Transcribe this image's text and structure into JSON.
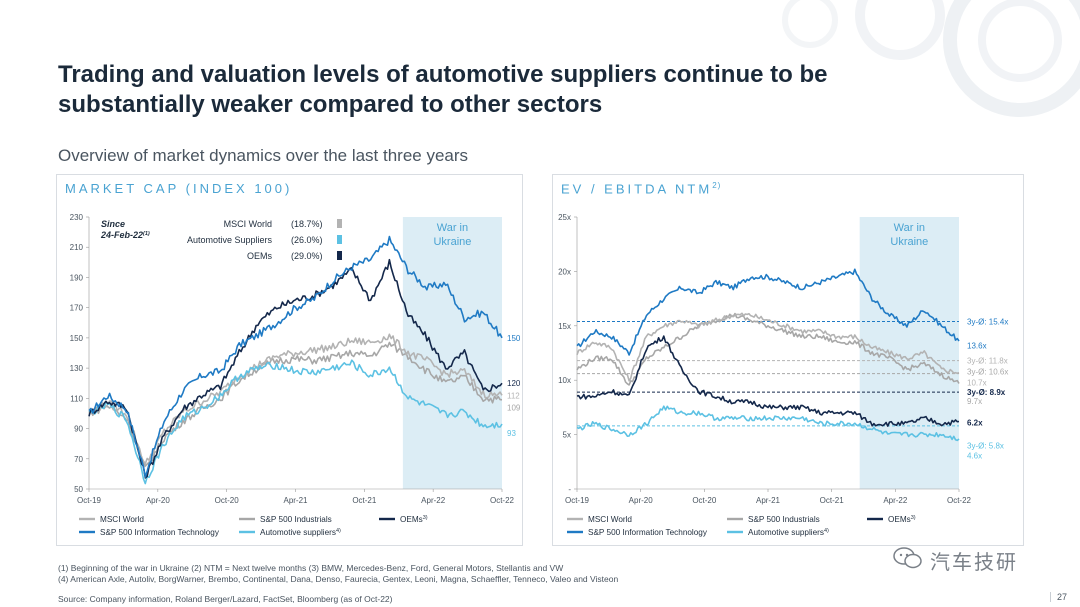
{
  "title": "Trading and valuation levels of automotive suppliers continue to be substantially weaker compared to other sectors",
  "subtitle": "Overview of market dynamics over the last three years",
  "colors": {
    "msci": "#b3b3b3",
    "sp500it": "#1f7ac4",
    "industrials": "#a7a7a7",
    "oems": "#14284b",
    "suppliers": "#5cc1e3",
    "war": "#dcedf5",
    "ref_dash": "#1f7ac4",
    "accent": "#4aa3d2"
  },
  "chart_data": [
    {
      "type": "line",
      "title": "MARKET CAP (INDEX 100)",
      "ylim": [
        50,
        230
      ],
      "yticks": [
        50,
        70,
        90,
        110,
        130,
        150,
        170,
        190,
        210,
        230
      ],
      "x_ticks": [
        "Oct-19",
        "Apr-20",
        "Oct-20",
        "Apr-21",
        "Oct-21",
        "Apr-22",
        "Oct-22"
      ],
      "war_label": [
        "War in",
        "Ukraine"
      ],
      "since_label": [
        "Since",
        "24-Feb-22"
      ],
      "since_sup": "(1)",
      "since_rows": [
        {
          "label": "MSCI World",
          "value": "(18.7%)",
          "color": "msci"
        },
        {
          "label": "Automotive Suppliers",
          "value": "(26.0%)",
          "color": "suppliers"
        },
        {
          "label": "OEMs",
          "value": "(29.0%)",
          "color": "oems"
        }
      ],
      "end_labels": [
        "150",
        "120",
        "112",
        "109",
        "93"
      ],
      "legend": [
        {
          "label": "MSCI World",
          "sup": "",
          "color": "msci"
        },
        {
          "label": "S&P 500 Industrials",
          "sup": "",
          "color": "industrials"
        },
        {
          "label": "OEMs",
          "sup": "3)",
          "color": "oems"
        },
        {
          "label": "S&P 500 Information Technology",
          "sup": "",
          "color": "sp500it"
        },
        {
          "label": "Automotive suppliers",
          "sup": "4)",
          "color": "suppliers"
        }
      ],
      "series": [
        {
          "name": "S&P 500 Information Technology",
          "color": "sp500it",
          "values": [
            100,
            112,
            103,
            60,
            95,
            115,
            125,
            128,
            145,
            152,
            160,
            170,
            176,
            188,
            197,
            202,
            215,
            195,
            183,
            186,
            163,
            167,
            150
          ]
        },
        {
          "name": "OEMs",
          "color": "oems",
          "values": [
            100,
            108,
            104,
            58,
            85,
            103,
            112,
            118,
            140,
            160,
            170,
            175,
            178,
            185,
            195,
            175,
            200,
            165,
            150,
            130,
            140,
            115,
            120
          ]
        },
        {
          "name": "MSCI World",
          "color": "msci",
          "values": [
            100,
            107,
            100,
            66,
            88,
            101,
            108,
            114,
            125,
            132,
            138,
            140,
            142,
            144,
            148,
            147,
            151,
            140,
            135,
            126,
            128,
            113,
            112
          ]
        },
        {
          "name": "S&P 500 Industrials",
          "color": "industrials",
          "values": [
            100,
            105,
            97,
            63,
            84,
            95,
            103,
            110,
            122,
            130,
            135,
            136,
            135,
            137,
            140,
            138,
            146,
            138,
            128,
            120,
            124,
            110,
            109
          ]
        },
        {
          "name": "Automotive suppliers",
          "color": "suppliers",
          "values": [
            100,
            106,
            96,
            55,
            80,
            97,
            103,
            112,
            125,
            130,
            132,
            128,
            127,
            130,
            133,
            125,
            130,
            110,
            105,
            99,
            101,
            92,
            93
          ]
        }
      ]
    },
    {
      "type": "line",
      "title": "EV / EBITDA NTM",
      "title_sup": "2)",
      "ylim": [
        0,
        25
      ],
      "ytick_labels": [
        "-",
        "5x",
        "10x",
        "15x",
        "20x",
        "25x"
      ],
      "x_ticks": [
        "Oct-19",
        "Apr-20",
        "Oct-20",
        "Apr-21",
        "Oct-21",
        "Apr-22",
        "Oct-22"
      ],
      "war_label": [
        "War in",
        "Ukraine"
      ],
      "reference_lines": [
        {
          "label": "3y-Ø: 15.4x",
          "value": 15.4,
          "color": "sp500it",
          "bold": false
        },
        {
          "label": "3y-Ø: 11.8x",
          "value": 11.8,
          "color": "msci",
          "bold": false
        },
        {
          "label": "3y-Ø: 10.6x",
          "value": 10.6,
          "color": "industrials",
          "bold": false
        },
        {
          "label": "3y-Ø: 8.9x",
          "value": 8.9,
          "color": "oems",
          "bold": true
        },
        {
          "label": "3y-Ø: 5.8x",
          "value": 5.8,
          "color": "suppliers",
          "bold": false
        }
      ],
      "end_labels": [
        {
          "text": "13.6x",
          "color": "sp500it",
          "value": 13.6
        },
        {
          "text": "10.7x",
          "color": "msci",
          "value": 10.7
        },
        {
          "text": "9.7x",
          "color": "industrials",
          "value": 9.7
        },
        {
          "text": "6.2x",
          "color": "oems",
          "value": 6.2
        },
        {
          "text": "4.6x",
          "color": "suppliers",
          "value": 4.6
        }
      ],
      "legend": [
        {
          "label": "MSCI World",
          "sup": "",
          "color": "msci"
        },
        {
          "label": "S&P 500 Industrials",
          "sup": "",
          "color": "industrials"
        },
        {
          "label": "OEMs",
          "sup": "3)",
          "color": "oems"
        },
        {
          "label": "S&P 500 Information Technology",
          "sup": "",
          "color": "sp500it"
        },
        {
          "label": "Automotive suppliers",
          "sup": "4)",
          "color": "suppliers"
        }
      ],
      "series": [
        {
          "name": "S&P 500 Information Technology",
          "color": "sp500it",
          "values": [
            13,
            14.5,
            14,
            12.5,
            16,
            17.5,
            18.5,
            18,
            19,
            18.5,
            19.5,
            19.5,
            19,
            18.5,
            19,
            19.5,
            20,
            17.5,
            16,
            15,
            16.5,
            15,
            13.6
          ]
        },
        {
          "name": "MSCI World",
          "color": "msci",
          "values": [
            12.5,
            13.5,
            13,
            10,
            14,
            15,
            15.5,
            15,
            15.5,
            16,
            16,
            15.5,
            15,
            14.5,
            14.5,
            14,
            14,
            13,
            12.5,
            12,
            12.5,
            11,
            10.7
          ]
        },
        {
          "name": "S&P 500 Industrials",
          "color": "industrials",
          "values": [
            11,
            12,
            12,
            9.5,
            12,
            13,
            14,
            15,
            15.5,
            16,
            15.5,
            15,
            14.5,
            14,
            14,
            13.5,
            13.5,
            12.5,
            12,
            11,
            11.5,
            10.5,
            9.7
          ]
        },
        {
          "name": "OEMs",
          "color": "oems",
          "values": [
            8.5,
            8.5,
            9,
            8.5,
            13,
            14,
            11,
            9,
            8.5,
            8,
            8,
            7.5,
            7.5,
            7.5,
            7,
            7,
            7,
            6,
            6,
            6,
            6.5,
            6,
            6.2
          ]
        },
        {
          "name": "Automotive suppliers",
          "color": "suppliers",
          "values": [
            5.5,
            6,
            5.5,
            5,
            6,
            7.5,
            7,
            7,
            6.5,
            6.5,
            6.5,
            6.5,
            6.5,
            6.5,
            6,
            6,
            6,
            5.5,
            5,
            5,
            5,
            5,
            4.6
          ]
        }
      ]
    }
  ],
  "footnotes": [
    "(1) Beginning of the war in Ukraine      (2) NTM = Next twelve months              (3) BMW, Mercedes-Benz, Ford, General Motors, Stellantis and VW",
    "(4) American Axle, Autoliv, BorgWarner, Brembo, Continental, Dana, Denso, Faurecia, Gentex, Leoni, Magna, Schaeffler, Tenneco, Valeo and Visteon"
  ],
  "source": "Source: Company information, Roland Berger/Lazard, FactSet, Bloomberg (as of Oct-22)",
  "watermark": "汽车技研",
  "page_number": "27"
}
